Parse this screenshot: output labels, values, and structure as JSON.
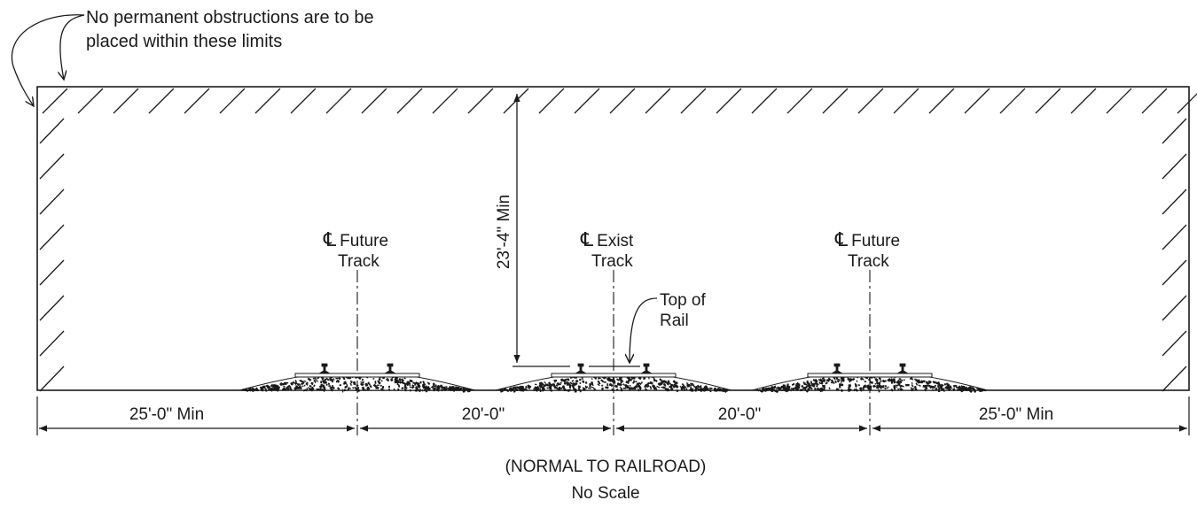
{
  "note": {
    "line1": "No permanent obstructions are to be",
    "line2": "placed within these limits"
  },
  "vertical_clearance": "23'-4\" Min",
  "tracks": [
    {
      "symbol": "℄",
      "line1": "Future",
      "line2": "Track"
    },
    {
      "symbol": "℄",
      "line1": "Exist",
      "line2": "Track"
    },
    {
      "symbol": "℄",
      "line1": "Future",
      "line2": "Track"
    }
  ],
  "top_of_rail": {
    "line1": "Top of",
    "line2": "Rail"
  },
  "dimensions": [
    "25'-0\" Min",
    "20'-0\"",
    "20'-0\"",
    "25'-0\" Min"
  ],
  "caption": {
    "line1": "(NORMAL TO RAILROAD)",
    "line2": "No Scale"
  }
}
